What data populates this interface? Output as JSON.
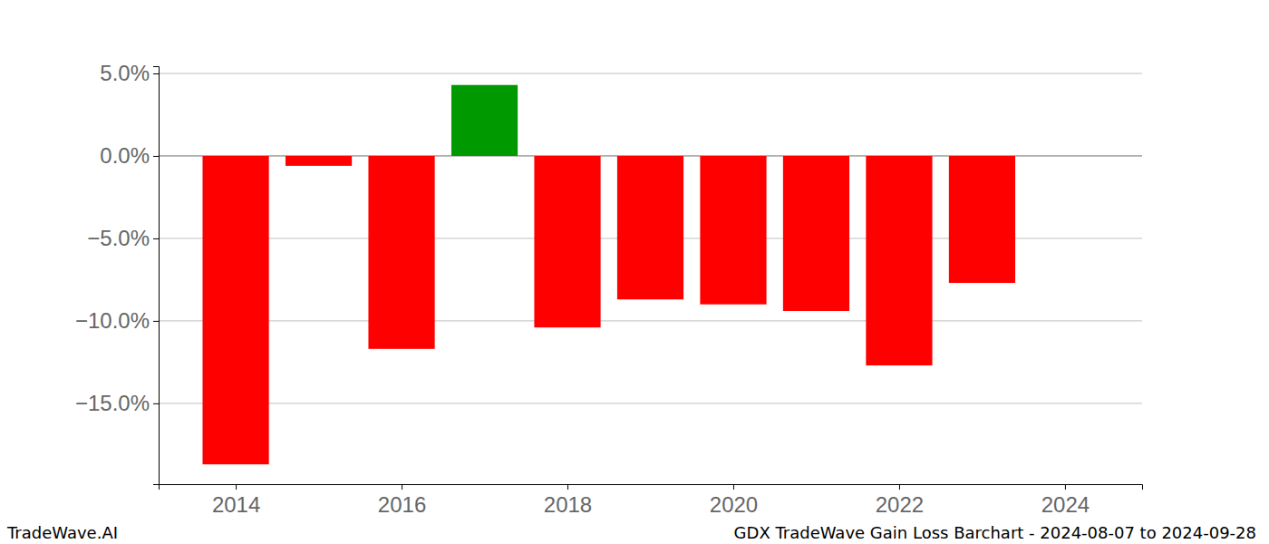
{
  "chart_data": {
    "type": "bar",
    "title": "GDX TradeWave Gain Loss Barchart - 2024-08-07 to 2024-09-28",
    "annotations": [
      "TradeWave.AI"
    ],
    "x": [
      2014,
      2015,
      2016,
      2017,
      2018,
      2019,
      2020,
      2021,
      2022,
      2023
    ],
    "values": [
      -18.7,
      -0.6,
      -11.7,
      4.3,
      -10.4,
      -8.7,
      -9.0,
      -9.4,
      -12.7,
      -7.7
    ],
    "colors": [
      "#ff0000",
      "#ff0000",
      "#ff0000",
      "#009900",
      "#ff0000",
      "#ff0000",
      "#ff0000",
      "#ff0000",
      "#ff0000",
      "#ff0000"
    ],
    "xlim": [
      2013.07,
      2024.93
    ],
    "xticks": [
      2014,
      2016,
      2018,
      2020,
      2022,
      2024
    ],
    "ylim": [
      -19.9,
      5.44
    ],
    "yticks": [
      {
        "value": 5,
        "label": "5.0%"
      },
      {
        "value": 0,
        "label": "0.0%"
      },
      {
        "value": -5,
        "label": "−5.0%"
      },
      {
        "value": -10,
        "label": "−10.0%"
      },
      {
        "value": -15,
        "label": "−15.0%"
      }
    ],
    "grid": true
  }
}
